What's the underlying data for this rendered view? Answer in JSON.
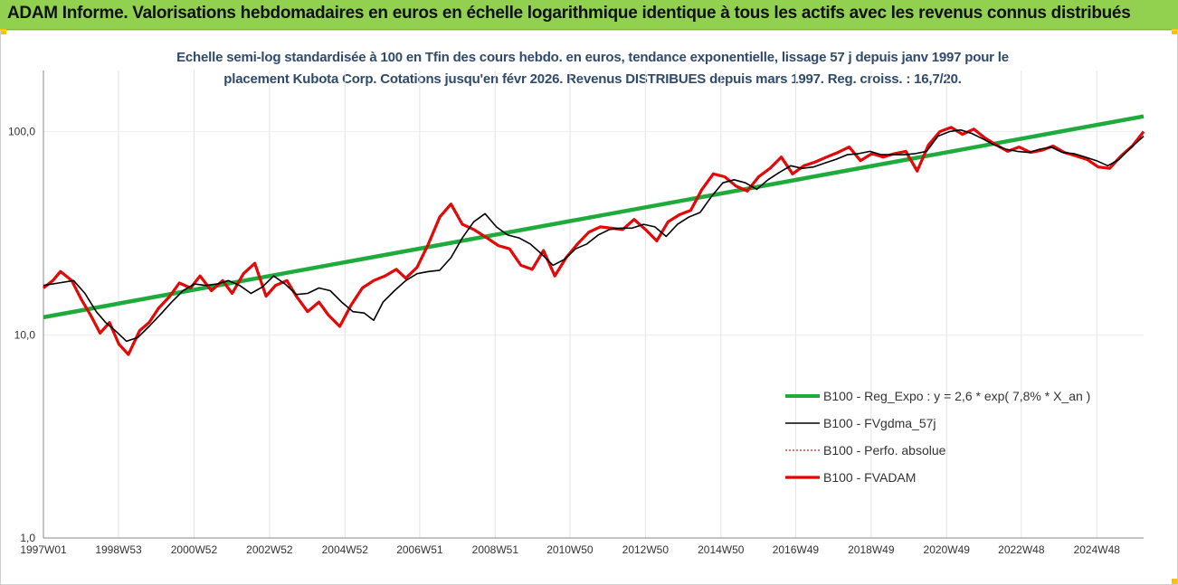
{
  "header": {
    "title": "ADAM Informe. Valorisations hebdomadaires en euros en échelle logarithmique identique à tous les actifs avec les revenus connus distribués"
  },
  "colors": {
    "banner": "#92d050",
    "accent_corner": "#ffc000",
    "regression": "#1faa3c",
    "smoothed": "#000000",
    "absolute": "#d42020",
    "fvadam": "#e60000",
    "subtitle": "#2f4a6d"
  },
  "chart_data": {
    "type": "line",
    "subtitle_line1": "Echelle semi-log standardisée à 100 en Tfin des cours hebdo. en euros, tendance exponentielle, lissage 57 j depuis janv 1997 pour le",
    "subtitle_line2": "placement Kubota Corp. Cotations jusqu'en févr 2026. Revenus DISTRIBUES depuis mars 1997. Reg. croiss. : 16,7/20.",
    "y_scale": "log",
    "ylim": [
      1,
      200
    ],
    "y_ticks": [
      {
        "value": 1,
        "label": "1,0"
      },
      {
        "value": 10,
        "label": "10,0"
      },
      {
        "value": 100,
        "label": "100,0"
      }
    ],
    "xlim": [
      1997.0,
      2026.15
    ],
    "x_ticks": [
      {
        "label": "1997W01",
        "year": 1997.0
      },
      {
        "label": "1998W53",
        "year": 1998.99
      },
      {
        "label": "2000W52",
        "year": 2000.99
      },
      {
        "label": "2002W52",
        "year": 2002.99
      },
      {
        "label": "2004W52",
        "year": 2004.99
      },
      {
        "label": "2006W51",
        "year": 2006.97
      },
      {
        "label": "2008W51",
        "year": 2008.97
      },
      {
        "label": "2010W50",
        "year": 2010.95
      },
      {
        "label": "2012W50",
        "year": 2012.95
      },
      {
        "label": "2014W50",
        "year": 2014.95
      },
      {
        "label": "2016W49",
        "year": 2016.93
      },
      {
        "label": "2018W49",
        "year": 2018.93
      },
      {
        "label": "2020W49",
        "year": 2020.93
      },
      {
        "label": "2022W48",
        "year": 2022.91
      },
      {
        "label": "2024W48",
        "year": 2024.91
      }
    ],
    "grid": "vertical",
    "legend_position": "bottom-right",
    "series": [
      {
        "name": "B100 - Reg_Expo : y = 2,6 * exp( 7,8% *  X_an )",
        "style": "regression",
        "x": [
          1997.0,
          2026.15
        ],
        "values": [
          12.2,
          119
        ]
      },
      {
        "name": "B100 - FVgdma_57j",
        "style": "smoothed",
        "x": [
          1997.0,
          1997.4,
          1997.8,
          1998.1,
          1998.4,
          1998.65,
          1998.9,
          1999.2,
          1999.5,
          1999.8,
          2000.1,
          2000.4,
          2000.7,
          2001.0,
          2001.3,
          2001.6,
          2001.9,
          2002.2,
          2002.5,
          2002.8,
          2003.1,
          2003.4,
          2003.7,
          2004.0,
          2004.3,
          2004.6,
          2004.9,
          2005.2,
          2005.5,
          2005.75,
          2006.0,
          2006.3,
          2006.6,
          2006.9,
          2007.2,
          2007.5,
          2007.8,
          2008.1,
          2008.4,
          2008.7,
          2009.0,
          2009.3,
          2009.6,
          2009.9,
          2010.2,
          2010.5,
          2010.8,
          2011.1,
          2011.4,
          2011.7,
          2012.0,
          2012.3,
          2012.6,
          2012.9,
          2013.2,
          2013.5,
          2013.8,
          2014.1,
          2014.4,
          2014.7,
          2015.0,
          2015.3,
          2015.6,
          2015.9,
          2016.2,
          2016.5,
          2016.8,
          2017.1,
          2017.4,
          2017.7,
          2018.0,
          2018.3,
          2018.6,
          2018.9,
          2019.2,
          2019.5,
          2019.8,
          2020.1,
          2020.4,
          2020.7,
          2021.0,
          2021.3,
          2021.6,
          2021.9,
          2022.2,
          2022.5,
          2022.8,
          2023.1,
          2023.4,
          2023.7,
          2024.0,
          2024.3,
          2024.6,
          2024.9,
          2025.2,
          2025.5,
          2025.8,
          2026.15
        ],
        "values": [
          17.5,
          18.0,
          18.5,
          16.0,
          13.0,
          11.5,
          10.5,
          9.3,
          9.7,
          11.0,
          12.6,
          14.5,
          16.5,
          17.8,
          17.5,
          17.8,
          18.5,
          17.5,
          16.0,
          17.2,
          19.5,
          17.8,
          15.8,
          16.0,
          17.0,
          16.5,
          14.5,
          13.0,
          12.8,
          11.8,
          14.5,
          16.5,
          18.5,
          20.0,
          20.5,
          20.8,
          24.0,
          30.0,
          36.0,
          39.5,
          34.0,
          31.0,
          30.0,
          28.0,
          25.0,
          22.0,
          23.5,
          26.5,
          28.0,
          31.0,
          33.0,
          33.5,
          33.5,
          35.0,
          34.0,
          30.5,
          35.0,
          38.0,
          40.0,
          48.0,
          56.0,
          58.0,
          56.0,
          52.0,
          58.0,
          63.0,
          68.0,
          66.0,
          67.0,
          70.0,
          73.0,
          77.0,
          78.0,
          80.0,
          77.0,
          77.0,
          77.0,
          78.0,
          80.0,
          95.0,
          100.0,
          102.0,
          98.0,
          92.0,
          86.0,
          82.0,
          80.0,
          79.0,
          82.0,
          84.0,
          79.0,
          78.0,
          75.0,
          72.0,
          68.0,
          73.0,
          83.0,
          95.0
        ]
      },
      {
        "name": "B100 - Perfo. absolue",
        "style": "absolute",
        "x": [
          1997.0,
          1997.25,
          1997.45,
          1997.75,
          1998.0,
          1998.25,
          1998.5,
          1998.75,
          1999.0,
          1999.25,
          1999.55,
          1999.8,
          2000.05,
          2000.35,
          2000.6,
          2000.9,
          2001.15,
          2001.45,
          2001.75,
          2002.0,
          2002.3,
          2002.6,
          2002.9,
          2003.15,
          2003.45,
          2003.7,
          2004.0,
          2004.3,
          2004.55,
          2004.85,
          2005.15,
          2005.45,
          2005.75,
          2006.05,
          2006.35,
          2006.6,
          2006.9,
          2007.2,
          2007.5,
          2007.8,
          2008.1,
          2008.4,
          2008.75,
          2009.05,
          2009.35,
          2009.65,
          2009.95,
          2010.25,
          2010.55,
          2010.85,
          2011.15,
          2011.45,
          2011.75,
          2012.05,
          2012.35,
          2012.65,
          2012.95,
          2013.25,
          2013.55,
          2013.85,
          2014.15,
          2014.45,
          2014.75,
          2015.05,
          2015.35,
          2015.65,
          2015.95,
          2016.25,
          2016.55,
          2016.85,
          2017.15,
          2017.45,
          2017.75,
          2018.05,
          2018.35,
          2018.65,
          2018.95,
          2019.25,
          2019.55,
          2019.85,
          2020.15,
          2020.45,
          2020.75,
          2021.05,
          2021.35,
          2021.65,
          2021.95,
          2022.25,
          2022.55,
          2022.85,
          2023.15,
          2023.45,
          2023.75,
          2024.05,
          2024.35,
          2024.65,
          2024.95,
          2025.25,
          2025.55,
          2025.85,
          2026.15
        ],
        "values": [
          17.0,
          18.5,
          20.5,
          18.5,
          15.0,
          12.5,
          10.2,
          11.5,
          9.0,
          8.0,
          10.5,
          11.5,
          13.5,
          15.5,
          18.0,
          17.0,
          19.5,
          16.5,
          18.5,
          16.0,
          20.0,
          22.5,
          15.5,
          17.5,
          18.5,
          15.5,
          13.0,
          14.5,
          12.5,
          11.0,
          14.0,
          17.0,
          18.5,
          19.5,
          21.0,
          19.0,
          21.5,
          28.0,
          38.0,
          44.0,
          35.0,
          33.0,
          30.0,
          27.5,
          26.5,
          22.0,
          21.0,
          26.0,
          19.5,
          24.0,
          28.0,
          32.0,
          34.0,
          33.5,
          33.0,
          37.0,
          33.0,
          29.0,
          36.0,
          39.0,
          41.0,
          52.0,
          62.0,
          60.0,
          54.0,
          51.0,
          60.0,
          66.0,
          75.0,
          62.0,
          68.0,
          71.0,
          75.0,
          79.0,
          84.0,
          72.0,
          78.0,
          75.0,
          78.0,
          80.0,
          64.0,
          86.0,
          100.0,
          105.0,
          97.0,
          103.0,
          93.0,
          86.0,
          80.0,
          84.0,
          79.0,
          81.0,
          85.0,
          79.0,
          76.0,
          73.0,
          67.0,
          66.0,
          76.0,
          85.0,
          100.0
        ]
      },
      {
        "name": "B100 - FVADAM",
        "style": "fvadam",
        "x": [
          1997.0,
          1997.25,
          1997.45,
          1997.75,
          1998.0,
          1998.25,
          1998.5,
          1998.75,
          1999.0,
          1999.25,
          1999.55,
          1999.8,
          2000.05,
          2000.35,
          2000.6,
          2000.9,
          2001.15,
          2001.45,
          2001.75,
          2002.0,
          2002.3,
          2002.6,
          2002.9,
          2003.15,
          2003.45,
          2003.7,
          2004.0,
          2004.3,
          2004.55,
          2004.85,
          2005.15,
          2005.45,
          2005.75,
          2006.05,
          2006.35,
          2006.6,
          2006.9,
          2007.2,
          2007.5,
          2007.8,
          2008.1,
          2008.4,
          2008.75,
          2009.05,
          2009.35,
          2009.65,
          2009.95,
          2010.25,
          2010.55,
          2010.85,
          2011.15,
          2011.45,
          2011.75,
          2012.05,
          2012.35,
          2012.65,
          2012.95,
          2013.25,
          2013.55,
          2013.85,
          2014.15,
          2014.45,
          2014.75,
          2015.05,
          2015.35,
          2015.65,
          2015.95,
          2016.25,
          2016.55,
          2016.85,
          2017.15,
          2017.45,
          2017.75,
          2018.05,
          2018.35,
          2018.65,
          2018.95,
          2019.25,
          2019.55,
          2019.85,
          2020.15,
          2020.45,
          2020.75,
          2021.05,
          2021.35,
          2021.65,
          2021.95,
          2022.25,
          2022.55,
          2022.85,
          2023.15,
          2023.45,
          2023.75,
          2024.05,
          2024.35,
          2024.65,
          2024.95,
          2025.25,
          2025.55,
          2025.85,
          2026.15
        ],
        "values": [
          17.0,
          18.5,
          20.5,
          18.5,
          15.0,
          12.5,
          10.2,
          11.5,
          9.0,
          8.0,
          10.5,
          11.5,
          13.5,
          15.5,
          18.0,
          17.0,
          19.5,
          16.5,
          18.5,
          16.0,
          20.0,
          22.5,
          15.5,
          17.5,
          18.5,
          15.5,
          13.0,
          14.5,
          12.5,
          11.0,
          14.0,
          17.0,
          18.5,
          19.5,
          21.0,
          19.0,
          21.5,
          28.0,
          38.0,
          44.0,
          35.0,
          33.0,
          30.0,
          27.5,
          26.5,
          22.0,
          21.0,
          26.0,
          19.5,
          24.0,
          28.0,
          32.0,
          34.0,
          33.5,
          33.0,
          37.0,
          33.0,
          29.0,
          36.0,
          39.0,
          41.0,
          52.0,
          62.0,
          60.0,
          54.0,
          51.0,
          60.0,
          66.0,
          75.0,
          62.0,
          68.0,
          71.0,
          75.0,
          79.0,
          84.0,
          72.0,
          78.0,
          75.0,
          78.0,
          80.0,
          64.0,
          86.0,
          100.0,
          105.0,
          97.0,
          103.0,
          93.0,
          86.0,
          80.0,
          84.0,
          79.0,
          81.0,
          85.0,
          79.0,
          76.0,
          73.0,
          67.0,
          66.0,
          76.0,
          85.0,
          100.0
        ]
      }
    ]
  }
}
